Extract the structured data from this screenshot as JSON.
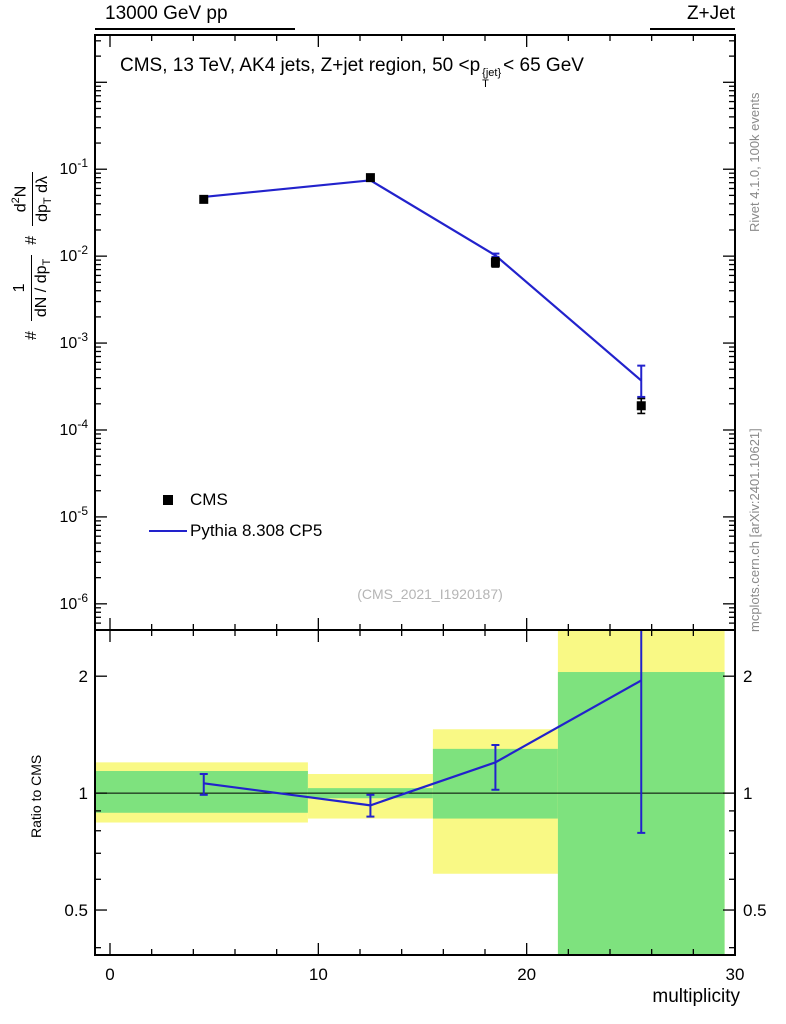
{
  "header": {
    "left": "13000 GeV pp",
    "right": "Z+Jet"
  },
  "plot": {
    "title": {
      "pre": "CMS, 13 TeV, AK4 jets, Z+jet region, 50 <p",
      "sup": "{jet}",
      "sub": "T",
      "post": "< 65 GeV"
    },
    "watermark": "(CMS_2021_I1920187)",
    "ylabel": {
      "hash1": "#",
      "frac1_num": "1",
      "frac1_den": {
        "pre": "dN / dp",
        "sub": "T"
      },
      "hash2": "#",
      "frac2_num": {
        "pre": "d",
        "sup": "2",
        "post": "N"
      },
      "frac2_den": {
        "pre": "dp",
        "sub": "T",
        "post": " dλ"
      }
    },
    "ratio_ylabel": "Ratio to CMS",
    "xlabel": "multiplicity"
  },
  "legend": {
    "items": [
      {
        "label": "CMS",
        "marker": "square",
        "color": "#000000"
      },
      {
        "label": "Pythia 8.308 CP5",
        "marker": "line",
        "color": "#2222cc"
      }
    ]
  },
  "side_notes": {
    "top": "Rivet 4.1.0,  100k events",
    "bottom": "mcplots.cern.ch [arXiv:2401.10621]"
  },
  "colors": {
    "pythia": "#2222cc",
    "cms": "#000000",
    "band_yellow": "#f9f985",
    "band_green": "#7ee27e",
    "gray_text": "#8a8a8a",
    "watermark": "#b5b5b5"
  },
  "chart_data": {
    "type": "line",
    "title": "CMS, 13 TeV, AK4 jets, Z+jet region, 50 < pT{jet} < 65 GeV",
    "xlabel": "multiplicity",
    "ylabel": "# 1/(dN/dpT) # d2N/(dpT dλ)",
    "ratio_label": "Ratio to CMS",
    "xlim": [
      -0.72,
      30
    ],
    "x_major_ticks": [
      0,
      10,
      20,
      30
    ],
    "x_minor_step": 2,
    "main": {
      "yscale": "log",
      "ylim": [
        5e-07,
        3.5
      ],
      "ytick_exponents": [
        -1,
        -2,
        -3,
        -4,
        -5,
        -6
      ],
      "series": [
        {
          "name": "CMS",
          "type": "points",
          "color": "#000000",
          "x": [
            4.5,
            12.5,
            18.5,
            25.5
          ],
          "y": [
            0.045,
            0.08,
            0.0085,
            0.00019
          ],
          "yerr_lo": [
            0.0435,
            0.077,
            0.0075,
            0.000155
          ],
          "yerr_hi": [
            0.047,
            0.083,
            0.0096,
            0.00023
          ]
        },
        {
          "name": "Pythia 8.308 CP5",
          "type": "line",
          "color": "#2222cc",
          "x": [
            4.5,
            12.5,
            18.5,
            25.5
          ],
          "y": [
            0.048,
            0.0745,
            0.0102,
            0.00037
          ],
          "yerr_lo": [
            0.0472,
            0.0737,
            0.0098,
            0.00024
          ],
          "yerr_hi": [
            0.0485,
            0.0755,
            0.0107,
            0.00055
          ]
        }
      ]
    },
    "ratio": {
      "yscale": "log",
      "ylim": [
        0.383,
        2.63
      ],
      "yticks": [
        0.5,
        1,
        2
      ],
      "y_minor_ticks": [
        0.4,
        0.6,
        0.7,
        0.8,
        0.9
      ],
      "ref_line": 1,
      "bands": [
        {
          "x0": -0.72,
          "x1": 9.5,
          "yellow": [
            0.84,
            1.2
          ],
          "green": [
            0.89,
            1.14
          ]
        },
        {
          "x0": 9.5,
          "x1": 15.5,
          "yellow": [
            0.86,
            1.12
          ],
          "green": [
            0.97,
            1.03
          ]
        },
        {
          "x0": 15.5,
          "x1": 21.5,
          "yellow": [
            0.62,
            1.46
          ],
          "green": [
            0.86,
            1.3
          ]
        },
        {
          "x0": 21.5,
          "x1": 29.5,
          "yellow": [
            0.383,
            2.63
          ],
          "green": [
            0.383,
            2.05
          ]
        }
      ],
      "points": {
        "x": [
          4.5,
          12.5,
          18.5,
          25.5
        ],
        "y": [
          1.06,
          0.93,
          1.2,
          1.95
        ],
        "yerr_lo": [
          0.99,
          0.87,
          1.02,
          0.79
        ],
        "yerr_hi": [
          1.12,
          0.99,
          1.33,
          2.63
        ]
      }
    }
  }
}
